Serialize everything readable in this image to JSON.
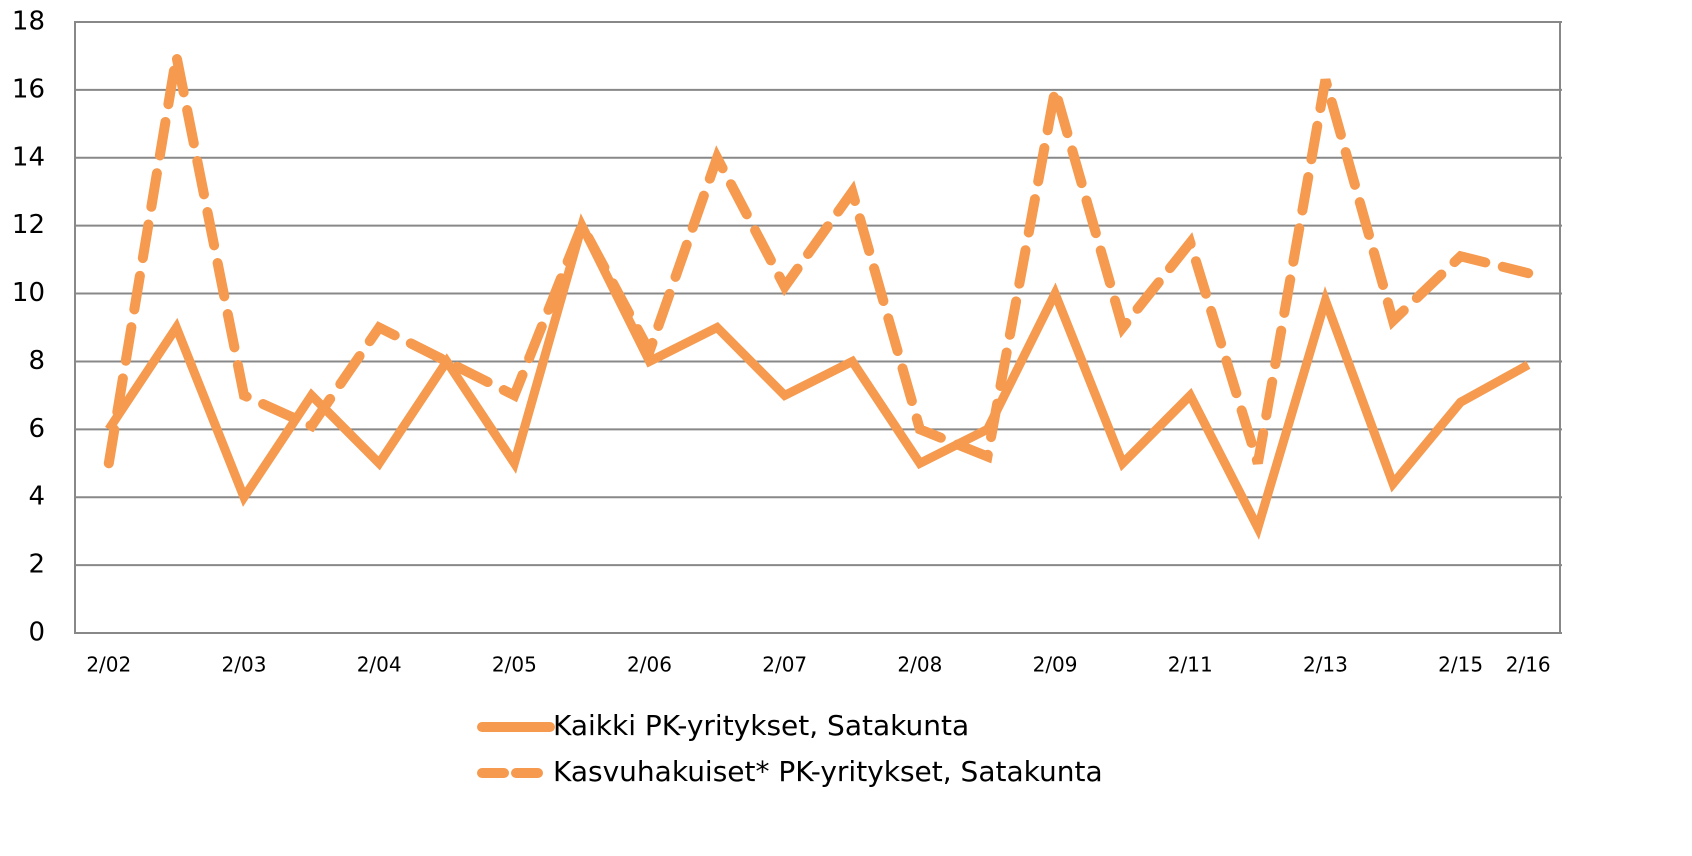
{
  "chart_data": {
    "type": "line",
    "categories": [
      "2/02",
      null,
      "2/03",
      null,
      "2/04",
      null,
      "2/05",
      null,
      "2/06",
      null,
      "2/07",
      null,
      "2/08",
      null,
      "2/09",
      null,
      "2/11",
      null,
      "2/13",
      null,
      "2/15",
      "2/16"
    ],
    "series": [
      {
        "name": "Kaikki PK-yritykset, Satakunta",
        "color": "#f59a4e",
        "dashed": false,
        "values": [
          6,
          9,
          4,
          7,
          5,
          8,
          5,
          12,
          8,
          9,
          7,
          8,
          5,
          6,
          10,
          5,
          7,
          3.1,
          9.8,
          4.4,
          6.8,
          7.9
        ]
      },
      {
        "name": "Kasvuhakuiset* PK-yritykset, Satakunta",
        "color": "#f59a4e",
        "dashed": true,
        "values": [
          5,
          17,
          7,
          6.1,
          9,
          8,
          7,
          12,
          8.3,
          14,
          10.2,
          13,
          6,
          5.2,
          16,
          9,
          11.5,
          5,
          16.3,
          9.2,
          11.1,
          10.6
        ]
      }
    ],
    "ylim": [
      0,
      18
    ],
    "yticks": [
      0,
      2,
      4,
      6,
      8,
      10,
      12,
      14,
      16,
      18
    ],
    "grid": true,
    "legend": "bottom"
  }
}
